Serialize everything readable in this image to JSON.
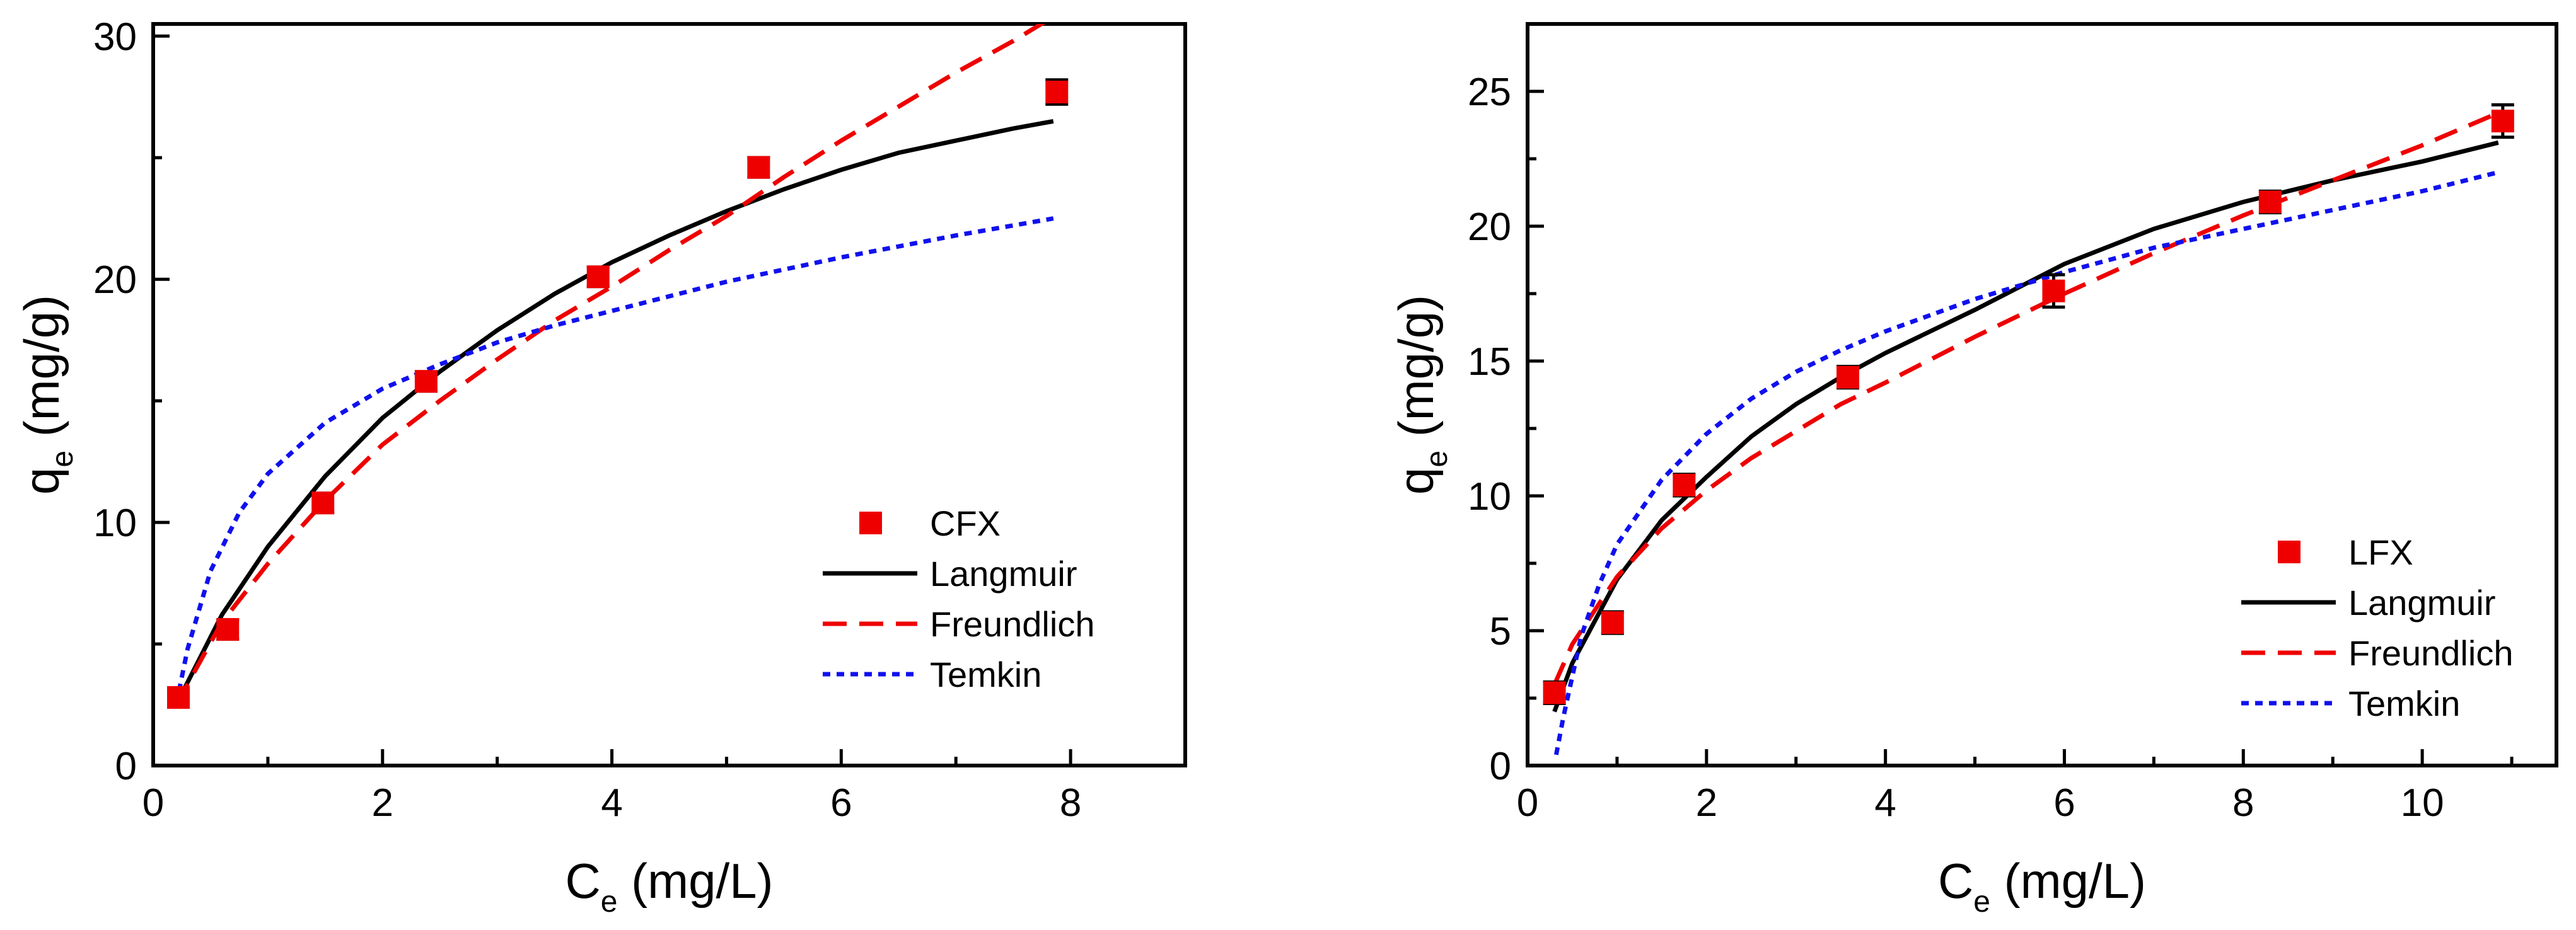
{
  "chart_data": [
    {
      "type": "scatter",
      "xlabel": "C",
      "xlabel_sub": "e",
      "xlabel_unit": " (mg/L)",
      "ylabel": "q",
      "ylabel_sub": "e",
      "ylabel_unit": " (mg/g)",
      "xlim": [
        0,
        9
      ],
      "ylim": [
        0,
        30.5
      ],
      "xticks": [
        0,
        2,
        4,
        6,
        8
      ],
      "xtick_labels": [
        "0",
        "2",
        "4",
        "6",
        "8"
      ],
      "yticks": [
        0,
        10,
        20,
        30
      ],
      "ytick_labels": [
        "0",
        "10",
        "20",
        "30"
      ],
      "legend_position": "center-right",
      "series": [
        {
          "name": "CFX",
          "kind": "points",
          "color": "#ee0000",
          "x": [
            0.22,
            0.65,
            1.48,
            2.38,
            3.88,
            5.28,
            7.88
          ],
          "y": [
            2.8,
            5.6,
            10.8,
            15.8,
            20.1,
            24.6,
            27.7
          ],
          "err": [
            0.3,
            0.4,
            0.4,
            0.4,
            0.4,
            0.4,
            0.5
          ]
        },
        {
          "name": "Langmuir",
          "kind": "line",
          "color": "#000000",
          "dash": "none",
          "x": [
            0.2,
            0.6,
            1.0,
            1.5,
            2.0,
            2.5,
            3.0,
            3.5,
            4.0,
            4.5,
            5.0,
            5.5,
            6.0,
            6.5,
            7.0,
            7.5,
            7.85
          ],
          "y": [
            2.5,
            6.2,
            9.0,
            11.9,
            14.3,
            16.2,
            17.9,
            19.4,
            20.7,
            21.8,
            22.8,
            23.7,
            24.5,
            25.2,
            25.7,
            26.2,
            26.5
          ]
        },
        {
          "name": "Freundlich",
          "kind": "line",
          "color": "#ee0000",
          "dash": "38,20",
          "x": [
            0.2,
            0.6,
            1.0,
            1.5,
            2.0,
            2.5,
            3.0,
            3.5,
            4.0,
            4.5,
            5.0,
            5.5,
            6.0,
            6.5,
            7.0,
            7.5,
            7.85
          ],
          "y": [
            2.5,
            5.9,
            8.3,
            10.9,
            13.2,
            15.0,
            16.7,
            18.3,
            19.7,
            21.2,
            22.6,
            24.2,
            25.7,
            27.1,
            28.5,
            29.8,
            30.8
          ]
        },
        {
          "name": "Temkin",
          "kind": "line",
          "color": "#1010ee",
          "dash": "12,10",
          "x": [
            0.2,
            0.3,
            0.5,
            0.75,
            1.0,
            1.5,
            2.0,
            2.5,
            3.0,
            3.5,
            4.0,
            5.0,
            6.0,
            7.0,
            7.85
          ],
          "y": [
            2.5,
            4.8,
            8.0,
            10.4,
            12.0,
            14.1,
            15.5,
            16.5,
            17.4,
            18.1,
            18.7,
            19.9,
            20.9,
            21.8,
            22.5
          ]
        }
      ]
    },
    {
      "type": "scatter",
      "xlabel": "C",
      "xlabel_sub": "e",
      "xlabel_unit": " (mg/L)",
      "ylabel": "q",
      "ylabel_sub": "e",
      "ylabel_unit": " (mg/g)",
      "xlim": [
        0,
        11.5
      ],
      "ylim": [
        0,
        27.5
      ],
      "xticks": [
        0,
        2,
        4,
        6,
        8,
        10
      ],
      "xtick_labels": [
        "0",
        "2",
        "4",
        "6",
        "8",
        "10"
      ],
      "yticks": [
        0,
        5,
        10,
        15,
        20,
        25
      ],
      "ytick_labels": [
        "0",
        "5",
        "10",
        "15",
        "20",
        "25"
      ],
      "legend_position": "bottom-right",
      "series": [
        {
          "name": "LFX",
          "kind": "points",
          "color": "#ee0000",
          "x": [
            0.3,
            0.95,
            1.75,
            3.58,
            5.88,
            8.3,
            10.9
          ],
          "y": [
            2.7,
            5.3,
            10.4,
            14.4,
            17.6,
            20.9,
            23.9
          ],
          "err": [
            0.4,
            0.4,
            0.4,
            0.4,
            0.6,
            0.4,
            0.6
          ]
        },
        {
          "name": "Langmuir",
          "kind": "line",
          "color": "#000000",
          "dash": "none",
          "x": [
            0.3,
            0.5,
            1.0,
            1.5,
            2.0,
            2.5,
            3.0,
            3.5,
            4.0,
            5.0,
            6.0,
            7.0,
            8.0,
            9.0,
            10.0,
            10.85
          ],
          "y": [
            2.0,
            3.8,
            6.9,
            9.1,
            10.7,
            12.2,
            13.4,
            14.4,
            15.3,
            16.9,
            18.6,
            19.9,
            20.9,
            21.7,
            22.4,
            23.1
          ]
        },
        {
          "name": "Freundlich",
          "kind": "line",
          "color": "#ee0000",
          "dash": "38,20",
          "x": [
            0.3,
            0.5,
            1.0,
            1.5,
            2.0,
            2.5,
            3.0,
            3.5,
            4.0,
            5.0,
            6.0,
            7.0,
            8.0,
            9.0,
            10.0,
            10.85
          ],
          "y": [
            3.0,
            4.5,
            7.0,
            8.8,
            10.2,
            11.4,
            12.4,
            13.4,
            14.2,
            15.9,
            17.5,
            19.0,
            20.4,
            21.7,
            23.0,
            24.2
          ]
        },
        {
          "name": "Temkin",
          "kind": "line",
          "color": "#1010ee",
          "dash": "12,10",
          "x": [
            0.32,
            0.4,
            0.6,
            0.8,
            1.0,
            1.5,
            2.0,
            2.5,
            3.0,
            3.5,
            4.0,
            5.0,
            6.0,
            7.0,
            8.0,
            9.0,
            10.0,
            10.85
          ],
          "y": [
            0.4,
            1.8,
            4.8,
            6.7,
            8.2,
            10.6,
            12.3,
            13.6,
            14.6,
            15.4,
            16.1,
            17.3,
            18.3,
            19.2,
            19.9,
            20.6,
            21.3,
            22.0
          ]
        }
      ]
    }
  ]
}
